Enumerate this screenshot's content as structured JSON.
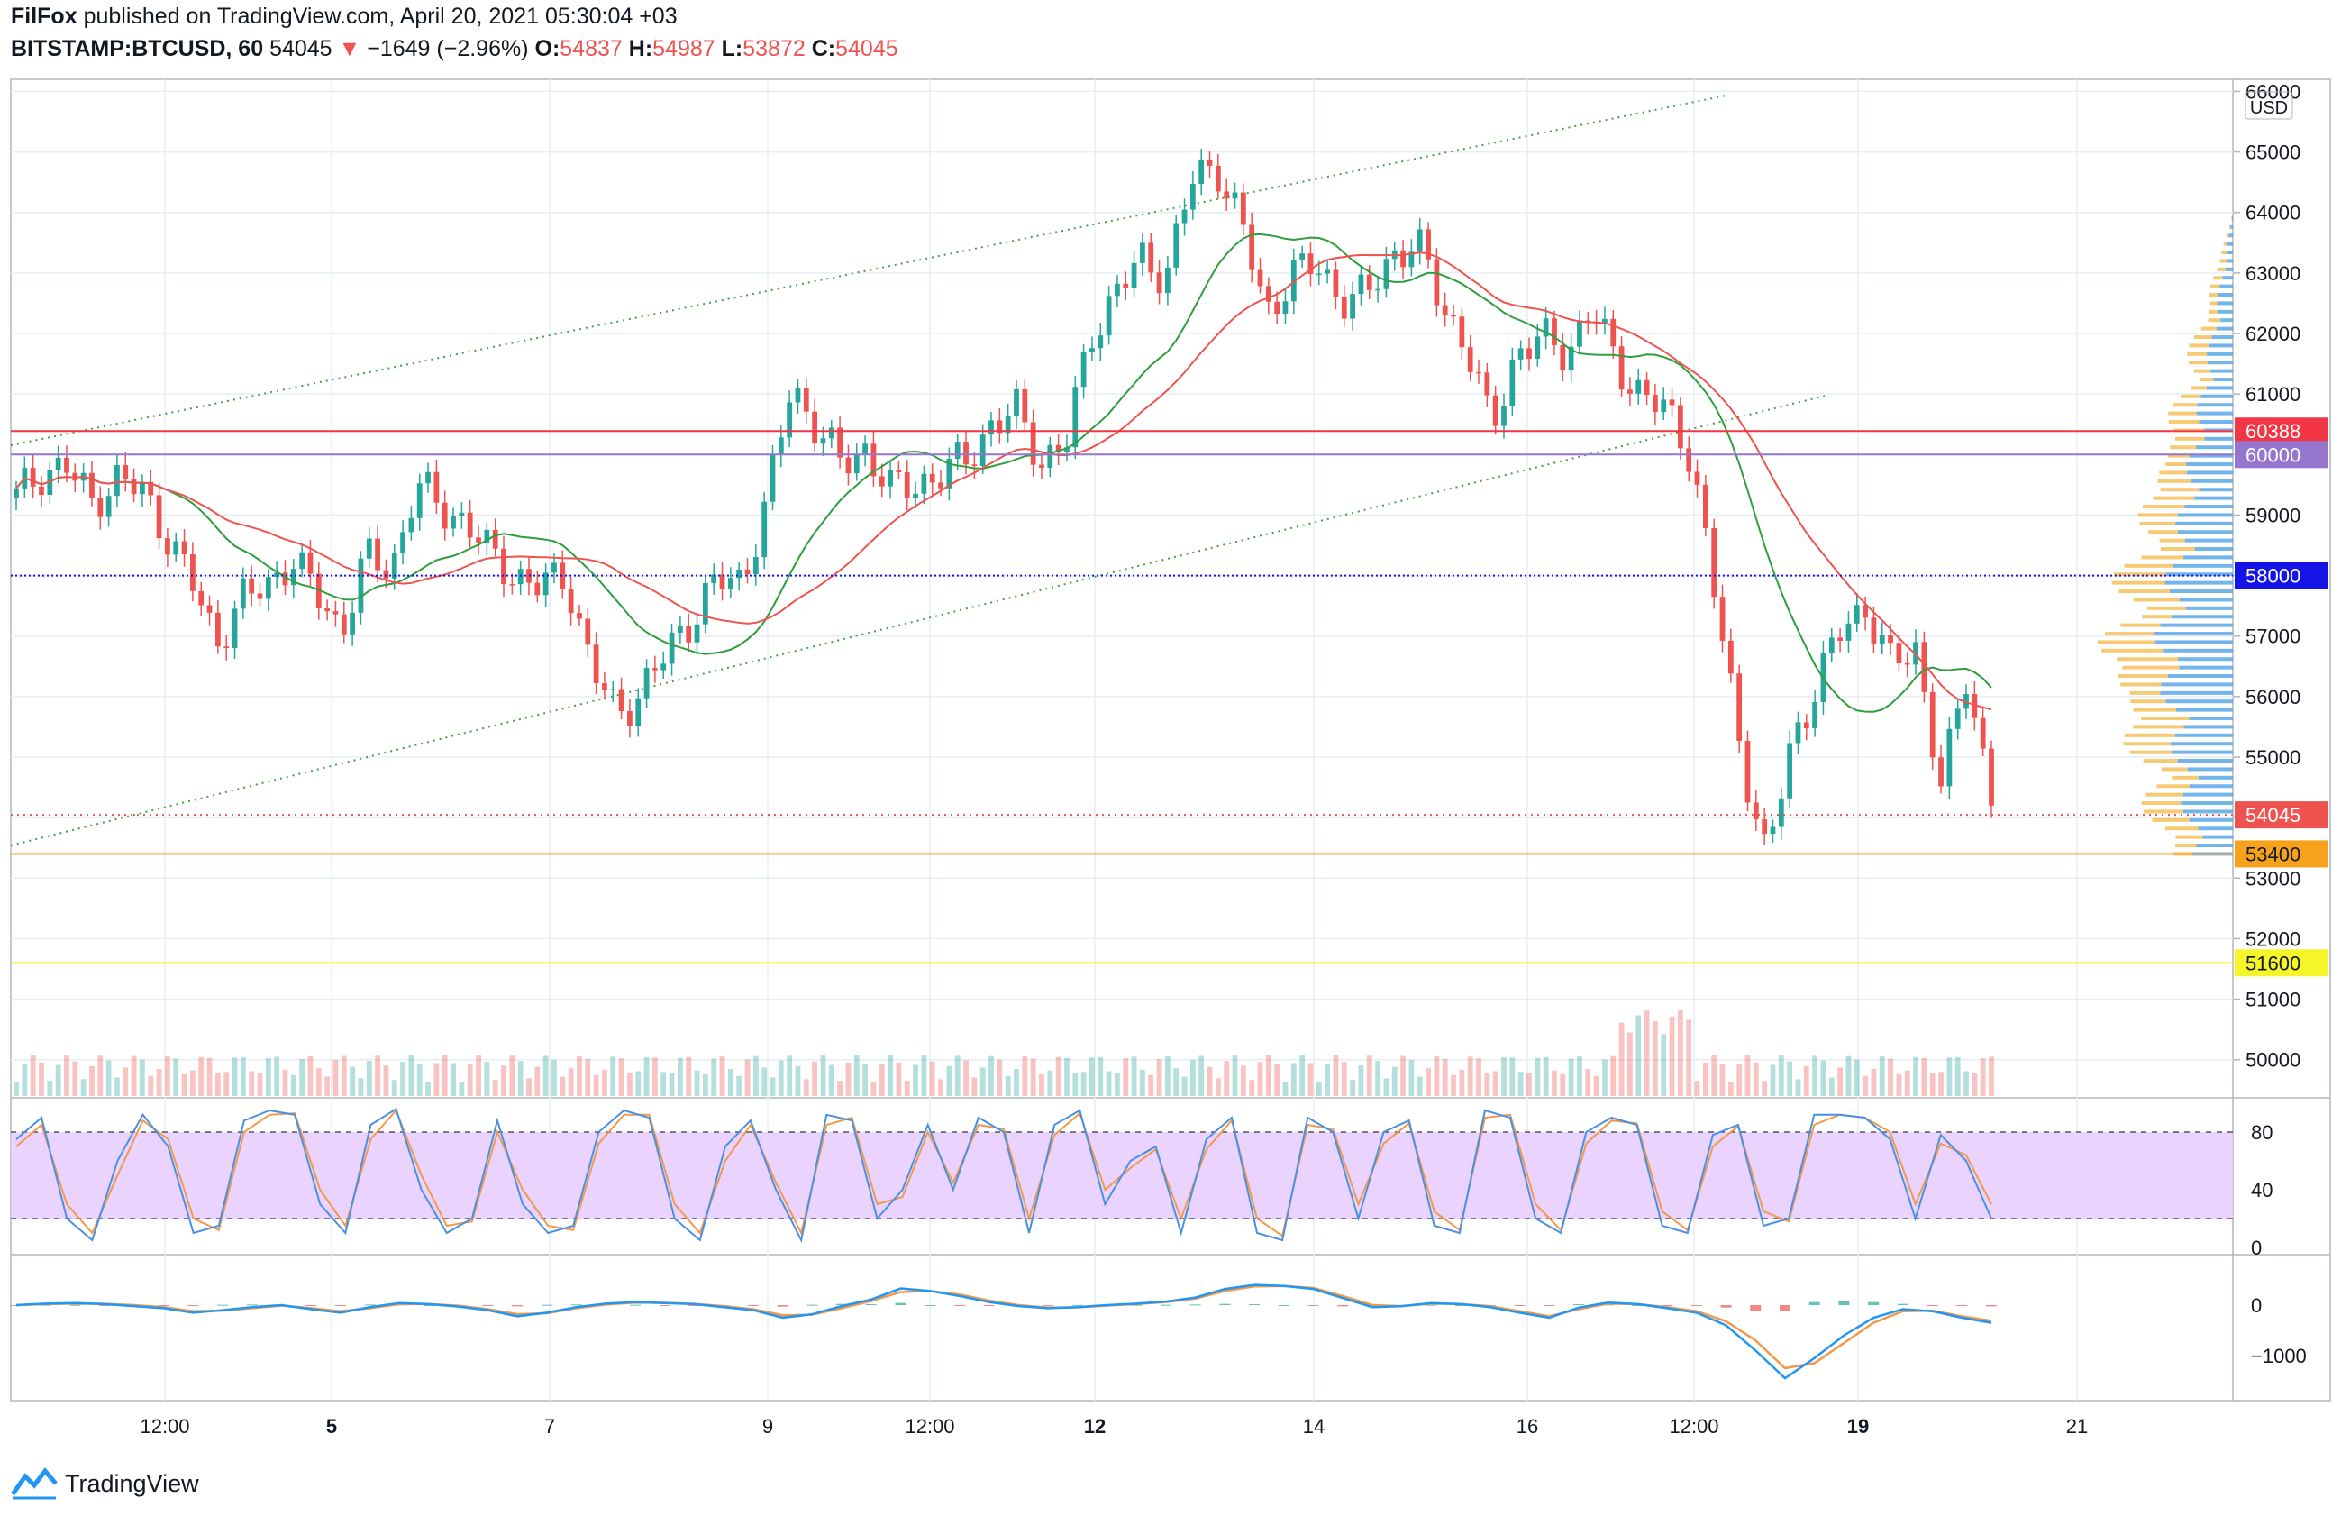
{
  "header": {
    "author": "FilFox",
    "published": "published on TradingView.com, April 20, 2021 05:30:04 +03",
    "symbol": "BITSTAMP:BTCUSD, 60",
    "last": "54045",
    "change": "−1649 (−2.96%)",
    "o_label": "O:",
    "o": "54837",
    "h_label": "H:",
    "h": "54987",
    "l_label": "L:",
    "l": "53872",
    "c_label": "C:",
    "c": "54045"
  },
  "footer": {
    "brand": "TradingView",
    "logo_icon": "tradingview-logo-icon"
  },
  "colors": {
    "up": "#26a69a",
    "down": "#ef5350",
    "grid": "#e6eef4",
    "ma_green": "#2e9e3e",
    "ma_red": "#ef5350",
    "channel": "#43a047",
    "stoch_fill": "#e6cbff",
    "stoch_k": "#4a90e2",
    "stoch_d": "#f2994a",
    "vp_buy": "#5aa8e6",
    "vp_sell": "#f5c15a"
  },
  "chart_data": {
    "type": "candlestick",
    "currency": "USD",
    "y_ticks": [
      "66000",
      "65000",
      "64000",
      "63000",
      "62000",
      "61000",
      "60000",
      "59000",
      "58000",
      "57000",
      "56000",
      "55000",
      "54000",
      "53000",
      "52000",
      "51000",
      "50000"
    ],
    "x_ticks": [
      "12:00",
      "5",
      "7",
      "9",
      "12:00",
      "12",
      "14",
      "16",
      "12:00",
      "19",
      "21"
    ],
    "price_levels": [
      {
        "value": "60388",
        "color": "#f23645"
      },
      {
        "value": "60000",
        "color": "#9575cd"
      },
      {
        "value": "58000",
        "color": "#1414e6"
      },
      {
        "value": "54045",
        "color": "#ef5350"
      },
      {
        "value": "53400",
        "color": "#f7a21b"
      },
      {
        "value": "51600",
        "color": "#f5f52a"
      }
    ],
    "close_path": [
      59300,
      59700,
      59800,
      59200,
      59600,
      59400,
      58700,
      57900,
      56900,
      57600,
      57800,
      58300,
      57700,
      57100,
      58300,
      58100,
      59500,
      59100,
      58900,
      58300,
      58000,
      57800,
      58000,
      56500,
      55700,
      56100,
      56700,
      57300,
      57900,
      57900,
      59200,
      61100,
      60500,
      59800,
      60100,
      59400,
      59500,
      59700,
      59900,
      60500,
      60700,
      59900,
      60200,
      62000,
      62700,
      63200,
      63000,
      64500,
      64800,
      63800,
      62300,
      63000,
      63100,
      62600,
      62600,
      63300,
      63500,
      62500,
      61800,
      60400,
      61700,
      61900,
      61700,
      62400,
      61500,
      61000,
      60700,
      60000,
      57500,
      55100,
      53300,
      55200,
      56200,
      57100,
      57500,
      56500,
      56800,
      54500,
      56300,
      54400
    ],
    "volume_profile_note": "visible-range volume profile on right edge"
  },
  "stoch": {
    "ticks": [
      "80",
      "40",
      "0"
    ],
    "upper": 80,
    "lower": 20,
    "k_path": [
      75,
      90,
      20,
      5,
      60,
      92,
      70,
      10,
      15,
      88,
      95,
      92,
      30,
      10,
      85,
      96,
      40,
      10,
      20,
      88,
      30,
      10,
      15,
      80,
      95,
      90,
      20,
      5,
      70,
      88,
      40,
      5,
      92,
      88,
      20,
      40,
      85,
      40,
      90,
      80,
      10,
      85,
      95,
      30,
      60,
      70,
      10,
      75,
      90,
      10,
      5,
      90,
      80,
      20,
      80,
      88,
      15,
      10,
      95,
      90,
      20,
      10,
      80,
      90,
      85,
      15,
      10,
      78,
      85,
      15,
      20,
      92,
      92,
      90,
      75,
      20,
      78,
      60,
      20
    ],
    "d_path": [
      70,
      85,
      30,
      10,
      50,
      88,
      75,
      20,
      12,
      80,
      92,
      93,
      40,
      15,
      75,
      95,
      50,
      15,
      18,
      80,
      40,
      15,
      12,
      72,
      92,
      92,
      30,
      10,
      60,
      85,
      45,
      10,
      85,
      90,
      30,
      35,
      80,
      45,
      85,
      82,
      20,
      78,
      93,
      40,
      55,
      68,
      20,
      68,
      88,
      20,
      8,
      85,
      82,
      30,
      72,
      86,
      25,
      12,
      90,
      92,
      30,
      12,
      72,
      88,
      86,
      25,
      12,
      70,
      84,
      25,
      18,
      85,
      92,
      90,
      80,
      30,
      72,
      64,
      30
    ]
  },
  "macd": {
    "ticks": [
      "0",
      "−1000"
    ],
    "macd_path": [
      0,
      30,
      40,
      20,
      -20,
      -60,
      -150,
      -100,
      -40,
      0,
      -80,
      -150,
      -40,
      40,
      20,
      -30,
      -100,
      -220,
      -150,
      -40,
      30,
      60,
      40,
      20,
      -40,
      -100,
      -250,
      -180,
      -20,
      110,
      330,
      280,
      180,
      60,
      -20,
      -60,
      -40,
      0,
      30,
      70,
      150,
      320,
      400,
      380,
      320,
      140,
      -40,
      -20,
      40,
      20,
      -40,
      -150,
      -250,
      -50,
      50,
      20,
      -60,
      -150,
      -400,
      -900,
      -1450,
      -1050,
      -600,
      -250,
      -80,
      -120,
      -250,
      -350
    ],
    "signal_path": [
      0,
      20,
      30,
      25,
      0,
      -40,
      -120,
      -110,
      -60,
      -10,
      -60,
      -120,
      -60,
      20,
      20,
      -10,
      -80,
      -180,
      -160,
      -60,
      10,
      50,
      45,
      25,
      -20,
      -80,
      -200,
      -190,
      -60,
      80,
      260,
      280,
      210,
      90,
      0,
      -50,
      -45,
      -10,
      20,
      60,
      130,
      280,
      370,
      380,
      340,
      180,
      0,
      -20,
      30,
      20,
      -20,
      -120,
      -220,
      -80,
      30,
      20,
      -40,
      -120,
      -320,
      -700,
      -1250,
      -1150,
      -750,
      -350,
      -120,
      -110,
      -220,
      -310
    ]
  }
}
